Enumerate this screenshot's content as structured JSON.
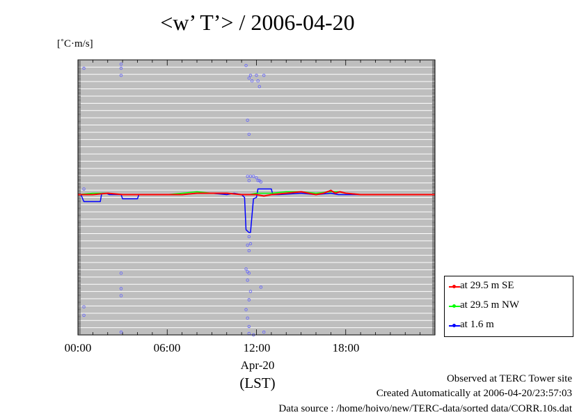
{
  "chart_data": {
    "type": "line",
    "title": "<w’ T’> / 2006-04-20",
    "ylabel": "[˚C·m/s]",
    "xlabel": "Apr-20",
    "x_axis_subtitle": "(LST)",
    "x_unit": "hour",
    "xlim": [
      0,
      24
    ],
    "ylim": [
      -1.0,
      0.96
    ],
    "grid": true,
    "legend_position": "bottom-right",
    "x_tick_labels": [
      {
        "x": 0,
        "label": "00:00"
      },
      {
        "x": 6,
        "label": "06:00"
      },
      {
        "x": 12,
        "label": "12:00"
      },
      {
        "x": 18,
        "label": "18:00"
      }
    ],
    "series": [
      {
        "name": "at 29.5 m SE",
        "color": "#ff0000",
        "x": [
          0,
          1,
          2,
          3,
          4,
          5,
          6,
          7,
          8,
          9,
          10,
          11,
          11.5,
          12,
          12.5,
          13,
          14,
          15,
          16,
          16.5,
          17,
          17.3,
          17.6,
          18,
          19,
          20,
          21,
          22,
          23,
          24
        ],
        "y": [
          0.0,
          0.0,
          0.01,
          0.0,
          0.0,
          0.0,
          0.0,
          0.0,
          0.01,
          0.01,
          0.01,
          0.0,
          0.0,
          0.0,
          -0.01,
          0.0,
          0.01,
          0.02,
          0.0,
          0.01,
          0.03,
          0.01,
          0.02,
          0.01,
          0.0,
          0.0,
          0.0,
          0.0,
          0.0,
          0.0
        ]
      },
      {
        "name": "at 29.5 m NW",
        "color": "#00ff00",
        "x": [
          0,
          1,
          2,
          3,
          4,
          5,
          6,
          7,
          8,
          9,
          10,
          11,
          11.5,
          12,
          12.5,
          13,
          14,
          15,
          16,
          17,
          17.5,
          18,
          19,
          20,
          21,
          22,
          23,
          24
        ],
        "y": [
          0.0,
          0.01,
          0.01,
          0.0,
          0.0,
          0.0,
          0.0,
          0.01,
          0.02,
          0.01,
          0.01,
          0.0,
          0.0,
          0.01,
          0.01,
          0.01,
          0.02,
          0.02,
          0.01,
          0.02,
          0.02,
          0.01,
          0.0,
          0.0,
          0.0,
          0.0,
          0.0,
          0.0
        ]
      },
      {
        "name": "at 1.6 m",
        "color": "#0000ff",
        "x": [
          0,
          0.2,
          0.4,
          1.4,
          1.5,
          1.6,
          1.9,
          2.1,
          2.9,
          3.0,
          4.0,
          4.1,
          7.0,
          8.0,
          9.0,
          10.0,
          10.5,
          11.0,
          11.2,
          11.3,
          11.5,
          11.6,
          11.8,
          12.0,
          12.1,
          12.3,
          12.8,
          13.0,
          13.1,
          13.5,
          15.0,
          16.0,
          17.0,
          17.5,
          18.0,
          19.0,
          20.0
        ],
        "y": [
          0.0,
          0.0,
          -0.05,
          -0.05,
          -0.05,
          0.01,
          0.01,
          0.0,
          0.0,
          -0.03,
          -0.03,
          0.0,
          0.0,
          0.01,
          0.01,
          0.0,
          0.01,
          0.0,
          -0.02,
          -0.25,
          -0.27,
          -0.27,
          -0.03,
          -0.02,
          0.04,
          0.04,
          0.04,
          0.04,
          0.0,
          0.0,
          0.01,
          0.0,
          0.01,
          0.0,
          0.0,
          0.0,
          0.0
        ]
      }
    ],
    "outlier_points": {
      "color": "#6060ff",
      "x": [
        0.4,
        2.9,
        2.9,
        2.9,
        11.3,
        11.5,
        11.6,
        11.7,
        12.0,
        12.1,
        12.2,
        12.5,
        11.4,
        11.5,
        11.4,
        11.6,
        11.5,
        11.8,
        12.0,
        12.1,
        12.2,
        12.3,
        11.5,
        11.6,
        11.4,
        11.5,
        11.3,
        11.4,
        11.5,
        11.4,
        12.3,
        11.6,
        11.5,
        11.4,
        2.9,
        2.9,
        2.9,
        0.4,
        0.4,
        2.9,
        0.4,
        11.5,
        11.8,
        12.5,
        11.3,
        11.5
      ],
      "y": [
        0.9,
        0.93,
        0.9,
        0.85,
        0.92,
        0.83,
        0.85,
        0.81,
        0.85,
        0.81,
        0.77,
        0.85,
        0.53,
        0.43,
        0.13,
        0.13,
        0.1,
        0.13,
        0.12,
        0.1,
        0.1,
        0.09,
        -0.3,
        -0.35,
        -0.36,
        -0.4,
        -0.53,
        -0.55,
        -0.56,
        -0.61,
        -0.66,
        -0.69,
        -0.75,
        -0.88,
        -0.56,
        -0.67,
        -0.72,
        -0.8,
        -0.86,
        -0.98,
        0.04,
        -0.99,
        -1.0,
        -0.98,
        -0.82,
        -0.94
      ]
    }
  },
  "footer": {
    "observed": "Observed at TERC Tower site",
    "created": "Created Automatically at 2006-04-20/23:57:03",
    "source": "Data source : /home/hoivo/new/TERC-data/sorted  data/CORR.10s.dat"
  }
}
